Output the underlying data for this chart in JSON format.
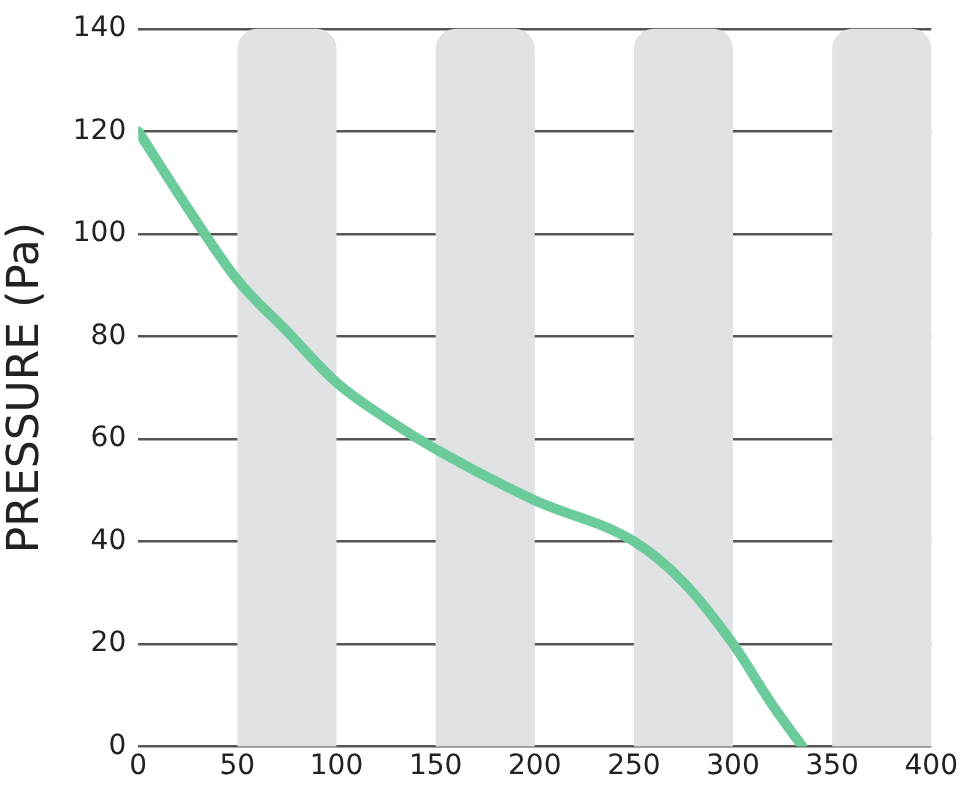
{
  "chart_data": {
    "type": "line",
    "ylabel": "PRESSURE (Pa)",
    "x": [
      0,
      25,
      50,
      75,
      100,
      125,
      150,
      200,
      250,
      275,
      300,
      320,
      335
    ],
    "series": [
      {
        "color": "#6ccb9a",
        "values": [
          120,
          105,
          91,
          81,
          71,
          64,
          58,
          48,
          40,
          32,
          20,
          8,
          0
        ]
      }
    ],
    "xlim": [
      0,
      400
    ],
    "xticks": [
      0,
      50,
      100,
      150,
      200,
      250,
      300,
      350,
      400
    ],
    "ylim": [
      0,
      140
    ],
    "yticks": [
      0,
      20,
      40,
      60,
      80,
      100,
      120,
      140
    ],
    "grid": "y",
    "legend": false,
    "marker": "none",
    "line_style": "solid",
    "bands": [
      {
        "axis": "x",
        "from": 50,
        "to": 100,
        "color": "#e1e2e4"
      },
      {
        "axis": "x",
        "from": 150,
        "to": 200,
        "color": "#e1e2e4"
      },
      {
        "axis": "x",
        "from": 250,
        "to": 300,
        "color": "#e1e2e4"
      },
      {
        "axis": "x",
        "from": 350,
        "to": 400,
        "color": "#e1e2e4"
      }
    ]
  }
}
